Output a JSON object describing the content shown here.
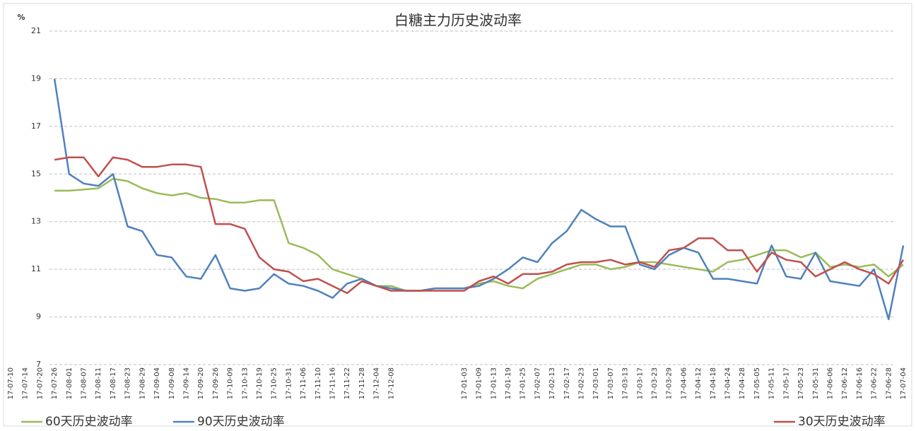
{
  "chart_data": {
    "type": "line",
    "title": "白糖主力历史波动率",
    "y_label": "%",
    "categories": [
      "17-07-10",
      "17-07-14",
      "17-07-20",
      "17-07-26",
      "17-08-01",
      "17-08-07",
      "17-08-11",
      "17-08-17",
      "17-08-23",
      "17-08-29",
      "17-09-04",
      "17-09-08",
      "17-09-14",
      "17-09-20",
      "17-09-26",
      "17-10-09",
      "17-10-13",
      "17-10-19",
      "17-10-25",
      "17-10-31",
      "17-11-06",
      "17-11-10",
      "17-11-16",
      "17-11-22",
      "17-11-28",
      "17-12-04",
      "17-12-08",
      null,
      null,
      null,
      null,
      "17-01-03",
      "17-01-09",
      "17-01-13",
      "17-01-19",
      "17-01-25",
      "17-02-07",
      "17-02-13",
      "17-02-17",
      "17-02-23",
      "17-03-01",
      "17-03-07",
      "17-03-13",
      "17-03-17",
      "17-03-23",
      "17-03-29",
      "17-04-06",
      "17-04-12",
      "17-04-18",
      "17-04-24",
      "17-04-28",
      "17-05-05",
      "17-05-11",
      "17-05-17",
      "17-05-23",
      "17-05-31",
      "17-06-06",
      "17-06-12",
      "17-06-16",
      "17-06-22",
      "17-06-28",
      "17-07-04"
    ],
    "series": [
      {
        "name": "60天历史波动率",
        "color": "#9bbb59",
        "values": [
          null,
          null,
          null,
          14.3,
          14.3,
          14.35,
          14.4,
          14.8,
          14.7,
          14.4,
          14.2,
          14.1,
          14.2,
          14.0,
          13.95,
          13.8,
          13.8,
          13.9,
          13.9,
          12.1,
          11.9,
          11.6,
          11.0,
          10.8,
          10.6,
          10.3,
          10.3,
          10.1,
          10.1,
          10.2,
          10.2,
          10.2,
          10.4,
          10.5,
          10.3,
          10.2,
          10.6,
          10.8,
          11.0,
          11.2,
          11.2,
          11.0,
          11.1,
          11.3,
          11.3,
          11.2,
          11.1,
          11.0,
          10.9,
          11.3,
          11.4,
          11.6,
          11.8,
          11.8,
          11.5,
          11.7,
          11.1,
          11.2,
          11.1,
          11.2,
          10.7,
          11.2
        ]
      },
      {
        "name": "90天历史波动率",
        "color": "#4f81bd",
        "values": [
          null,
          null,
          null,
          19.0,
          15.0,
          14.6,
          14.5,
          15.0,
          12.8,
          12.6,
          11.6,
          11.5,
          10.7,
          10.6,
          11.6,
          10.2,
          10.1,
          10.2,
          10.8,
          10.4,
          10.3,
          10.1,
          9.8,
          10.4,
          10.6,
          10.3,
          10.2,
          10.1,
          10.1,
          10.2,
          10.2,
          10.2,
          10.3,
          10.6,
          11.0,
          11.5,
          11.3,
          12.1,
          12.6,
          13.5,
          13.1,
          12.8,
          12.8,
          11.2,
          11.0,
          11.6,
          11.9,
          11.7,
          10.6,
          10.6,
          10.5,
          10.4,
          12.0,
          10.7,
          10.6,
          11.7,
          10.5,
          10.4,
          10.3,
          11.0,
          8.9,
          12.0
        ]
      },
      {
        "name": "30天历史波动率",
        "color": "#c0504d",
        "values": [
          null,
          null,
          null,
          15.6,
          15.7,
          15.7,
          14.9,
          15.7,
          15.6,
          15.3,
          15.3,
          15.4,
          15.4,
          15.3,
          12.9,
          12.9,
          12.7,
          11.5,
          11.0,
          10.9,
          10.5,
          10.6,
          10.3,
          10.0,
          10.5,
          10.3,
          10.1,
          10.1,
          10.1,
          10.1,
          10.1,
          10.1,
          10.5,
          10.7,
          10.4,
          10.8,
          10.8,
          10.9,
          11.2,
          11.3,
          11.3,
          11.4,
          11.2,
          11.3,
          11.1,
          11.8,
          11.9,
          12.3,
          12.3,
          11.8,
          11.8,
          10.9,
          11.7,
          11.4,
          11.3,
          10.7,
          11.0,
          11.3,
          11.0,
          10.8,
          10.4,
          11.4
        ]
      }
    ],
    "ylim": [
      7,
      21
    ],
    "yticks": [
      7,
      9,
      11,
      13,
      15,
      17,
      19,
      21
    ],
    "grid": true,
    "legend": "bottom"
  }
}
